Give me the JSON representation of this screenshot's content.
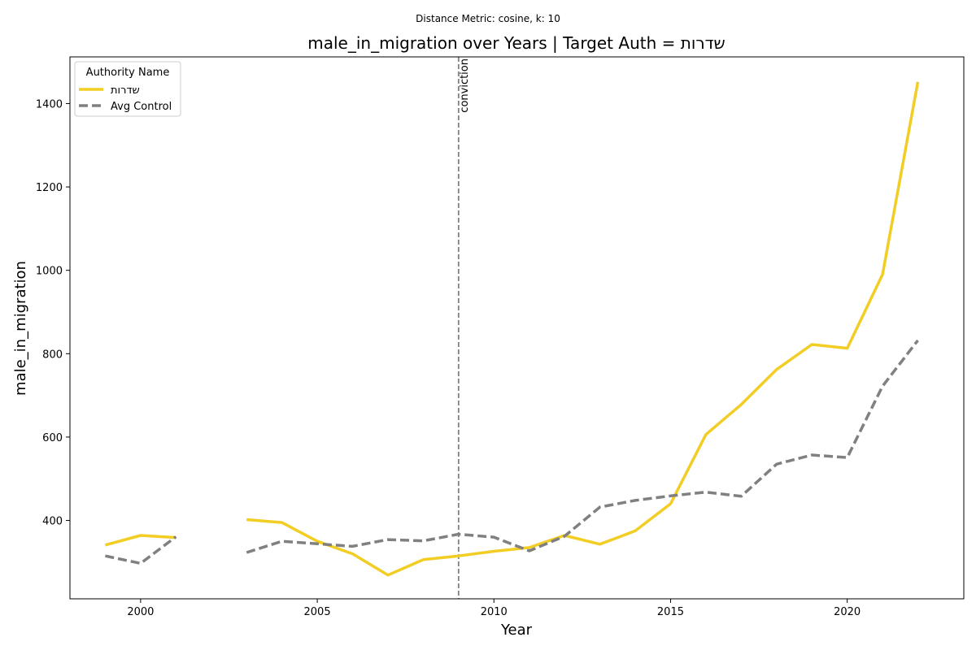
{
  "chart_data": {
    "type": "line",
    "suptitle": "Distance Metric: cosine, k: 10",
    "title": "male_in_migration over Years | Target Auth = שדרות",
    "xlabel": "Year",
    "ylabel": "male_in_migration",
    "xlim": [
      1998,
      2023.3
    ],
    "ylim": [
      212,
      1512
    ],
    "xticks": [
      2000,
      2005,
      2010,
      2015,
      2020
    ],
    "yticks": [
      400,
      600,
      800,
      1000,
      1200,
      1400
    ],
    "grid": false,
    "legend": {
      "title": "Authority Name",
      "placement": "top-left"
    },
    "x": [
      1999,
      2000,
      2001,
      2002,
      2003,
      2004,
      2005,
      2006,
      2007,
      2008,
      2009,
      2010,
      2011,
      2012,
      2013,
      2014,
      2015,
      2016,
      2017,
      2018,
      2019,
      2020,
      2021,
      2022
    ],
    "series": [
      {
        "name": "שדרות",
        "color": "#f2cd24",
        "style": "solid",
        "values": [
          341,
          364,
          359,
          null,
          402,
          395,
          350,
          320,
          269,
          306,
          315,
          326,
          335,
          364,
          343,
          375,
          440,
          606,
          678,
          762,
          822,
          813,
          990,
          1452
        ]
      },
      {
        "name": "Avg Control",
        "color": "#808080",
        "style": "dashed",
        "values": [
          315,
          297,
          361,
          null,
          323,
          350,
          344,
          338,
          354,
          351,
          367,
          360,
          327,
          362,
          432,
          448,
          459,
          468,
          458,
          535,
          557,
          551,
          722,
          832
        ]
      }
    ],
    "annotations": [
      {
        "type": "vline",
        "x": 2009,
        "label": "conviction",
        "color": "#808080"
      }
    ]
  }
}
